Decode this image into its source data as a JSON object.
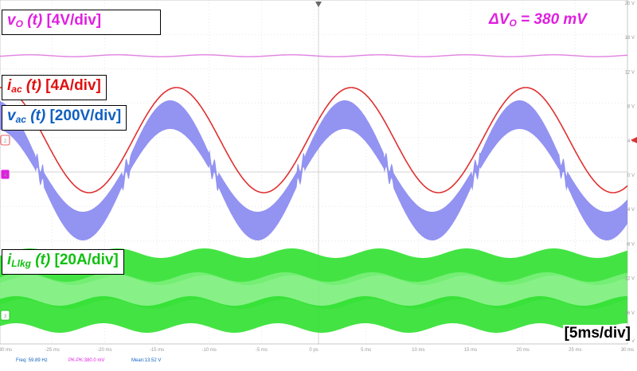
{
  "chart_data": {
    "type": "line",
    "labels": {
      "vo": {
        "var": "v",
        "sub": "O",
        "rest": " (t)",
        "scale": " [4V/div]"
      },
      "iac": {
        "var": "i",
        "sub": "ac",
        "rest": " (t)",
        "scale": " [4A/div]"
      },
      "vac": {
        "var": "v",
        "sub": "ac",
        "rest": " (t)",
        "scale": " [200V/div]"
      },
      "ilkg": {
        "var": "i",
        "sub": "Llkg",
        "rest": " (t)",
        "scale": " [20A/div]"
      }
    },
    "annotation": {
      "prefix": "ΔV",
      "sub": "O",
      "rest": " = 380 mV"
    },
    "time_scale": "[5ms/div]",
    "x_ticks": [
      "-30 ms",
      "-25 ms",
      "-20 ms",
      "-15 ms",
      "-10 ms",
      "-5 ms",
      "0 ps",
      "5 ms",
      "10 ms",
      "15 ms",
      "20 ms",
      "25 ms",
      "30 ms"
    ],
    "y_ticks_right": [
      "20 V",
      "16 V",
      "12 V",
      "8 V",
      "4 V",
      "0 V",
      "-4 V",
      "-8 V",
      "-12 V",
      "-16 V",
      "-20 V"
    ],
    "measurements": [
      {
        "text": "Freq: 59.89 Hz",
        "color": "#1060c0"
      },
      {
        "text": "PK-PK:380.0 mV",
        "color": "#e020e0"
      },
      {
        "text": "Mean:13.52 V",
        "color": "#1060c0"
      }
    ],
    "channel_markers": [
      "2",
      "4",
      "3"
    ],
    "xlim": [
      -30,
      30
    ],
    "x_unit": "ms",
    "frequency_hz": 59.89,
    "series": [
      {
        "key": "vo",
        "color": "#e080e0",
        "kind": "dc_ripple",
        "ripple_pp_mv": 380
      },
      {
        "key": "iac",
        "color": "#e03030",
        "kind": "sine",
        "period_ms": 16.7
      },
      {
        "key": "vac",
        "color": "#8080f0",
        "kind": "sine_band",
        "period_ms": 16.7
      },
      {
        "key": "ilkg",
        "color": "#30e030",
        "kind": "hf_envelope",
        "period_ms": 8.35
      }
    ]
  }
}
